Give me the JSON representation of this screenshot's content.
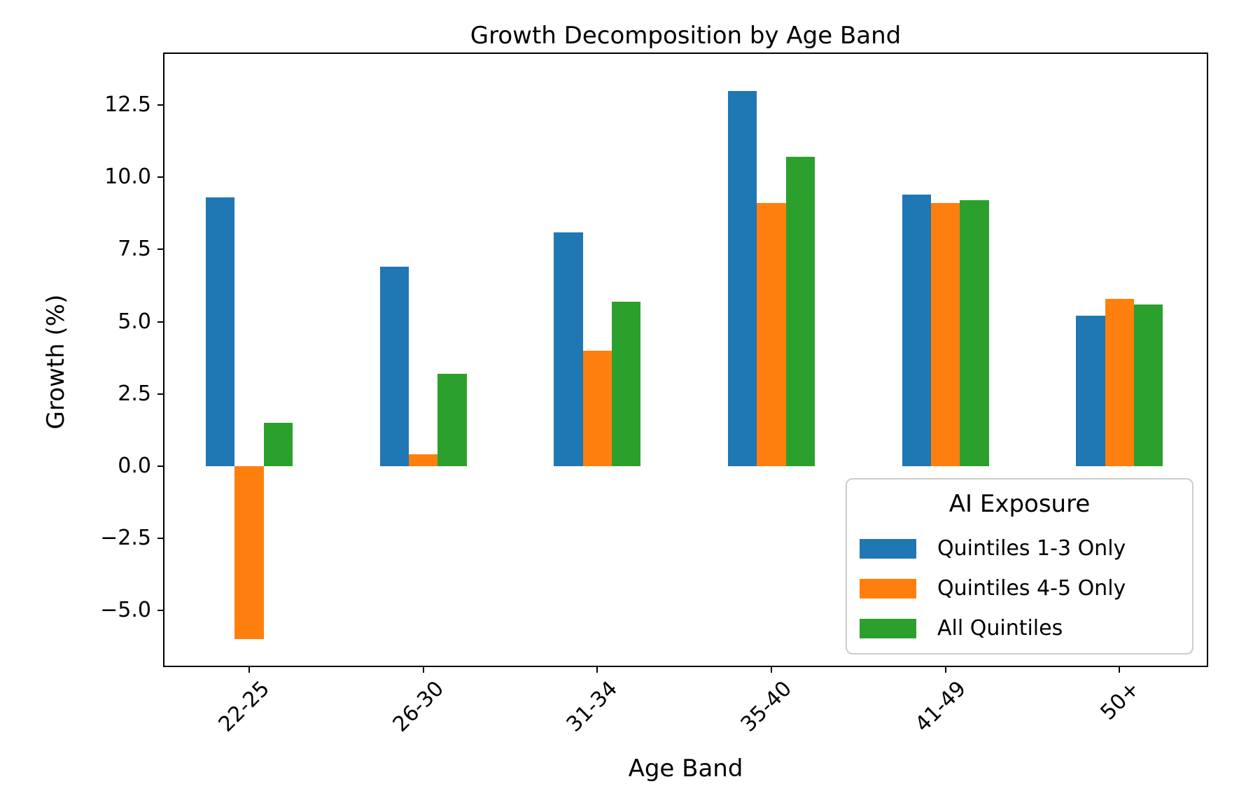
{
  "figure": {
    "background": "#ffffff",
    "text_color": "#000000",
    "frame_color": "#000000",
    "legend_border_color": "#cccccc"
  },
  "chart_data": {
    "type": "bar",
    "title": "Growth Decomposition by Age Band",
    "xlabel": "Age Band",
    "ylabel": "Growth (%)",
    "categories": [
      "22-25",
      "26-30",
      "31-34",
      "35-40",
      "41-49",
      "50+"
    ],
    "series": [
      {
        "name": "Quintiles 1-3 Only",
        "color": "#1f77b4",
        "values": [
          9.3,
          6.9,
          8.1,
          13.0,
          9.4,
          5.2
        ]
      },
      {
        "name": "Quintiles 4-5 Only",
        "color": "#ff7f0e",
        "values": [
          -6.0,
          0.4,
          4.0,
          9.1,
          9.1,
          5.8
        ]
      },
      {
        "name": "All Quintiles",
        "color": "#2ca02c",
        "values": [
          1.5,
          3.2,
          5.7,
          10.7,
          9.2,
          5.6
        ]
      }
    ],
    "legend": {
      "title": "AI Exposure",
      "position": "lower right"
    },
    "ylim": [
      -6.96,
      14.32
    ],
    "yticks": [
      {
        "value": 12.5,
        "label": "12.5"
      },
      {
        "value": 10.0,
        "label": "10.0"
      },
      {
        "value": 7.5,
        "label": "7.5"
      },
      {
        "value": 5.0,
        "label": "5.0"
      },
      {
        "value": 2.5,
        "label": "2.5"
      },
      {
        "value": 0.0,
        "label": "0.0"
      },
      {
        "value": -2.5,
        "label": "−2.5"
      },
      {
        "value": -5.0,
        "label": "−5.0"
      }
    ],
    "grid": false,
    "xtick_rotation_deg": 45
  }
}
